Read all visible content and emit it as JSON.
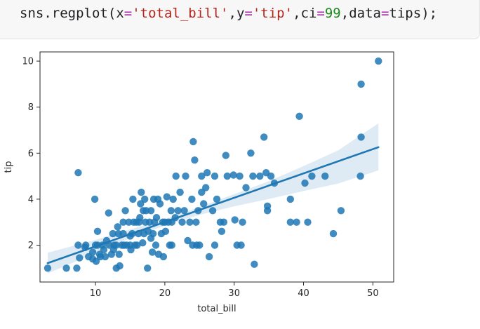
{
  "code": {
    "tokens": [
      {
        "text": "sns",
        "kind": "fn"
      },
      {
        "text": ".",
        "kind": "punct"
      },
      {
        "text": "regplot",
        "kind": "fn"
      },
      {
        "text": "(",
        "kind": "punct"
      },
      {
        "text": "x",
        "kind": "param"
      },
      {
        "text": "=",
        "kind": "op"
      },
      {
        "text": "'total_bill'",
        "kind": "str"
      },
      {
        "text": ",",
        "kind": "punct"
      },
      {
        "text": "y",
        "kind": "param"
      },
      {
        "text": "=",
        "kind": "op"
      },
      {
        "text": "'tip'",
        "kind": "str"
      },
      {
        "text": ",",
        "kind": "punct"
      },
      {
        "text": "ci",
        "kind": "param"
      },
      {
        "text": "=",
        "kind": "op"
      },
      {
        "text": "99",
        "kind": "num"
      },
      {
        "text": ",",
        "kind": "punct"
      },
      {
        "text": "data",
        "kind": "param"
      },
      {
        "text": "=",
        "kind": "op"
      },
      {
        "text": "tips",
        "kind": "param"
      },
      {
        "text": ");",
        "kind": "punct"
      }
    ]
  },
  "chart_data": {
    "type": "scatter",
    "xlabel": "total_bill",
    "ylabel": "tip",
    "xlim": [
      2,
      53
    ],
    "ylim": [
      0.4,
      10.4
    ],
    "xticks": [
      10,
      20,
      30,
      40,
      50
    ],
    "yticks": [
      2,
      4,
      6,
      8,
      10
    ],
    "grid": false,
    "colors": {
      "point": "#1f77b4",
      "line": "#1f77b4",
      "band": "#1f77b4"
    },
    "regression": {
      "x": [
        3.1,
        50.8
      ],
      "y": [
        1.22,
        6.26
      ]
    },
    "ci_band": {
      "x": [
        3.1,
        10,
        15,
        20,
        25,
        30,
        35,
        40,
        45,
        50.8
      ],
      "lower": [
        0.77,
        1.66,
        2.31,
        2.85,
        3.32,
        3.69,
        4.01,
        4.35,
        4.68,
        5.25
      ],
      "upper": [
        1.67,
        2.23,
        2.69,
        3.13,
        3.66,
        4.22,
        4.78,
        5.44,
        6.12,
        7.3
      ]
    },
    "points": [
      [
        3.1,
        1.0
      ],
      [
        5.8,
        1.0
      ],
      [
        7.3,
        1.0
      ],
      [
        7.5,
        5.15
      ],
      [
        7.5,
        2.0
      ],
      [
        7.7,
        1.45
      ],
      [
        8.5,
        1.9
      ],
      [
        8.6,
        2.0
      ],
      [
        9.0,
        1.5
      ],
      [
        9.6,
        1.4
      ],
      [
        9.6,
        1.7
      ],
      [
        9.9,
        4.0
      ],
      [
        10.0,
        2.0
      ],
      [
        10.1,
        1.3
      ],
      [
        10.3,
        2.0
      ],
      [
        10.3,
        2.6
      ],
      [
        10.6,
        1.6
      ],
      [
        10.7,
        1.5
      ],
      [
        11.0,
        2.0
      ],
      [
        11.2,
        1.8
      ],
      [
        11.4,
        1.5
      ],
      [
        11.6,
        2.2
      ],
      [
        11.9,
        3.4
      ],
      [
        12.0,
        2.0
      ],
      [
        12.3,
        1.6
      ],
      [
        12.5,
        2.5
      ],
      [
        12.6,
        1.8
      ],
      [
        12.7,
        2.0
      ],
      [
        13.0,
        2.0
      ],
      [
        13.0,
        1.0
      ],
      [
        13.2,
        2.8
      ],
      [
        13.3,
        2.5
      ],
      [
        13.4,
        1.6
      ],
      [
        13.5,
        1.1
      ],
      [
        13.8,
        2.0
      ],
      [
        14.0,
        3.0
      ],
      [
        14.0,
        2.5
      ],
      [
        14.1,
        2.0
      ],
      [
        14.3,
        3.5
      ],
      [
        14.5,
        2.0
      ],
      [
        14.8,
        3.0
      ],
      [
        15.0,
        2.0
      ],
      [
        15.0,
        2.4
      ],
      [
        15.1,
        1.8
      ],
      [
        15.3,
        2.5
      ],
      [
        15.4,
        4.0
      ],
      [
        15.5,
        3.0
      ],
      [
        15.7,
        2.0
      ],
      [
        15.9,
        3.0
      ],
      [
        16.0,
        2.0
      ],
      [
        16.2,
        2.5
      ],
      [
        16.3,
        3.0
      ],
      [
        16.4,
        3.2
      ],
      [
        16.5,
        3.8
      ],
      [
        16.6,
        4.3
      ],
      [
        16.8,
        2.1
      ],
      [
        16.9,
        3.5
      ],
      [
        17.0,
        2.5
      ],
      [
        17.1,
        4.0
      ],
      [
        17.2,
        3.0
      ],
      [
        17.3,
        3.5
      ],
      [
        17.5,
        1.0
      ],
      [
        17.6,
        2.6
      ],
      [
        17.8,
        3.0
      ],
      [
        18.0,
        2.3
      ],
      [
        18.0,
        3.5
      ],
      [
        18.2,
        1.7
      ],
      [
        18.3,
        2.5
      ],
      [
        18.4,
        4.0
      ],
      [
        18.5,
        3.0
      ],
      [
        18.7,
        2.0
      ],
      [
        18.8,
        3.2
      ],
      [
        19.0,
        4.0
      ],
      [
        19.1,
        1.6
      ],
      [
        19.3,
        3.8
      ],
      [
        19.5,
        2.5
      ],
      [
        19.7,
        3.0
      ],
      [
        19.8,
        1.5
      ],
      [
        20.0,
        3.0
      ],
      [
        20.1,
        2.6
      ],
      [
        20.3,
        4.1
      ],
      [
        20.5,
        3.0
      ],
      [
        20.7,
        2.0
      ],
      [
        20.9,
        3.5
      ],
      [
        21.0,
        3.0
      ],
      [
        21.0,
        2.0
      ],
      [
        21.2,
        4.0
      ],
      [
        21.5,
        3.2
      ],
      [
        21.6,
        5.0
      ],
      [
        21.9,
        3.5
      ],
      [
        22.2,
        4.3
      ],
      [
        22.5,
        3.0
      ],
      [
        22.8,
        3.5
      ],
      [
        23.0,
        5.0
      ],
      [
        23.3,
        2.2
      ],
      [
        23.6,
        3.0
      ],
      [
        23.9,
        4.0
      ],
      [
        24.0,
        2.0
      ],
      [
        24.1,
        6.5
      ],
      [
        24.3,
        5.7
      ],
      [
        24.5,
        3.0
      ],
      [
        24.6,
        2.0
      ],
      [
        24.8,
        3.5
      ],
      [
        25.0,
        2.0
      ],
      [
        25.3,
        5.0
      ],
      [
        25.3,
        4.3
      ],
      [
        25.6,
        3.8
      ],
      [
        25.9,
        4.5
      ],
      [
        26.1,
        5.15
      ],
      [
        26.4,
        1.5
      ],
      [
        26.9,
        3.5
      ],
      [
        27.2,
        5.0
      ],
      [
        27.2,
        2.0
      ],
      [
        27.5,
        4.0
      ],
      [
        28.0,
        3.0
      ],
      [
        28.2,
        2.6
      ],
      [
        28.5,
        3.0
      ],
      [
        28.8,
        5.9
      ],
      [
        29.0,
        5.0
      ],
      [
        29.9,
        5.05
      ],
      [
        30.1,
        3.1
      ],
      [
        30.4,
        2.0
      ],
      [
        30.8,
        5.0
      ],
      [
        31.0,
        2.0
      ],
      [
        31.2,
        3.0
      ],
      [
        31.7,
        4.5
      ],
      [
        32.4,
        6.0
      ],
      [
        32.7,
        5.0
      ],
      [
        32.9,
        1.17
      ],
      [
        33.7,
        5.0
      ],
      [
        34.3,
        6.7
      ],
      [
        34.6,
        5.15
      ],
      [
        34.8,
        3.5
      ],
      [
        34.8,
        3.7
      ],
      [
        35.3,
        5.0
      ],
      [
        35.8,
        4.7
      ],
      [
        38.1,
        4.0
      ],
      [
        38.1,
        3.0
      ],
      [
        39.0,
        3.0
      ],
      [
        39.4,
        7.6
      ],
      [
        40.2,
        4.7
      ],
      [
        40.6,
        3.0
      ],
      [
        41.2,
        5.0
      ],
      [
        43.1,
        5.0
      ],
      [
        44.3,
        2.5
      ],
      [
        45.4,
        3.5
      ],
      [
        48.2,
        5.0
      ],
      [
        48.3,
        9.0
      ],
      [
        48.3,
        6.7
      ],
      [
        50.8,
        10.0
      ]
    ]
  }
}
